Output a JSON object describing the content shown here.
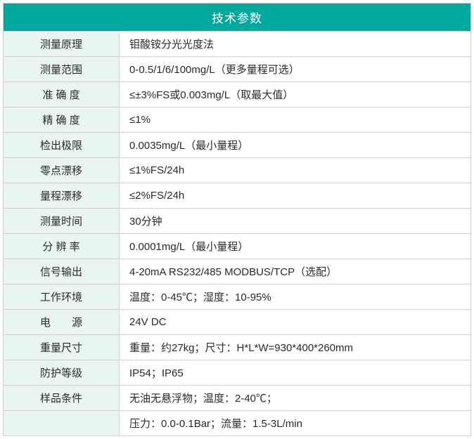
{
  "table": {
    "title": "技术参数",
    "header_bg": "#00a99d",
    "header_color": "#ffffff",
    "label_bg": "#e8f5f3",
    "value_bg": "#ffffff",
    "border_color": "#d0d0d0",
    "text_color": "#2a2a2a",
    "rows": [
      {
        "label": "测量原理",
        "value": "钼酸铵分光光度法",
        "spacing": ""
      },
      {
        "label": "测量范围",
        "value": "0-0.5/1/6/100mg/L（更多量程可选）",
        "spacing": ""
      },
      {
        "label": "准 确 度",
        "value": "≤±3%FS或0.003mg/L（取最大值）",
        "spacing": ""
      },
      {
        "label": "精 确 度",
        "value": "≤1%",
        "spacing": ""
      },
      {
        "label": "检出极限",
        "value": "0.0035mg/L（最小量程）",
        "spacing": ""
      },
      {
        "label": "零点漂移",
        "value": "≤1%FS/24h",
        "spacing": ""
      },
      {
        "label": "量程漂移",
        "value": "≤2%FS/24h",
        "spacing": ""
      },
      {
        "label": "测量时间",
        "value": "30分钟",
        "spacing": ""
      },
      {
        "label": "分 辨 率",
        "value": "0.0001mg/L（最小量程）",
        "spacing": ""
      },
      {
        "label": "信号输出",
        "value": "4-20mA  RS232/485  MODBUS/TCP（选配）",
        "spacing": ""
      },
      {
        "label": "工作环境",
        "value": "温度：0-45℃；湿度：10-95%",
        "spacing": ""
      },
      {
        "label": "电　　源",
        "value": "24V DC",
        "spacing": ""
      },
      {
        "label": "重量尺寸",
        "value": "重量：约27kg；尺寸：H*L*W=930*400*260mm",
        "spacing": ""
      },
      {
        "label": "防护等级",
        "value": "IP54；IP65",
        "spacing": ""
      },
      {
        "label": "样品条件",
        "value": "无油无悬浮物；温度：2-40℃；",
        "spacing": ""
      },
      {
        "label": "",
        "value": "压力：0.0-0.1Bar；流量：1.5-3L/min",
        "spacing": ""
      }
    ]
  }
}
